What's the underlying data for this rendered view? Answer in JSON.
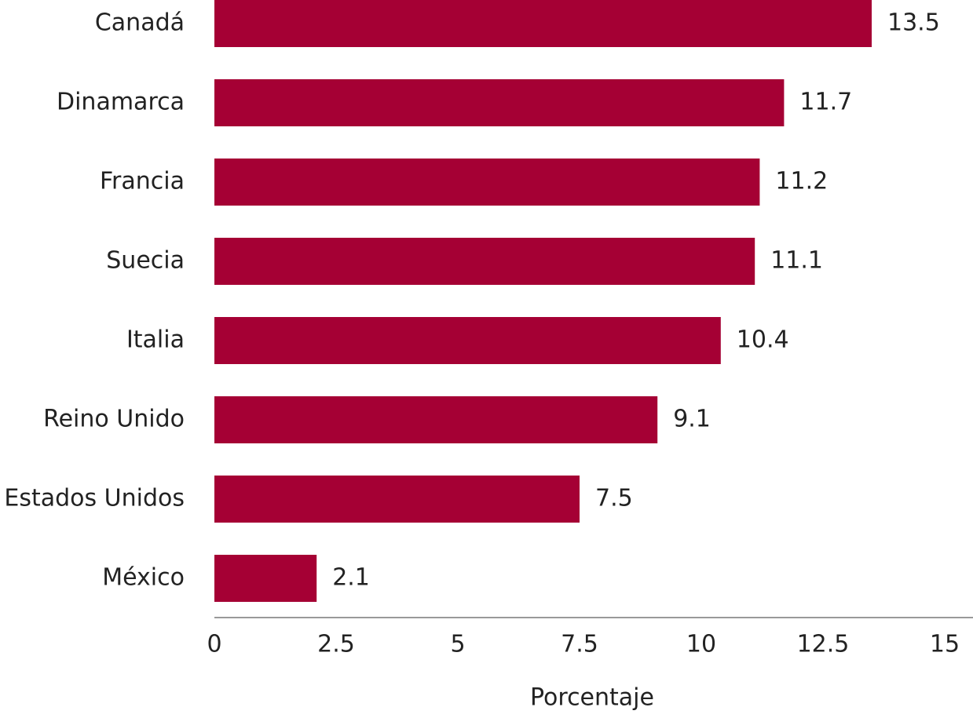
{
  "chart_data": {
    "type": "bar",
    "orientation": "horizontal",
    "categories": [
      "Canadá",
      "Dinamarca",
      "Francia",
      "Suecia",
      "Italia",
      "Reino Unido",
      "Estados Unidos",
      "México"
    ],
    "values": [
      13.5,
      11.7,
      11.2,
      11.1,
      10.4,
      9.1,
      7.5,
      2.1
    ],
    "color": "#a50034",
    "xlabel": "Porcentaje",
    "xlim": [
      0,
      15
    ],
    "xticks": [
      0,
      2.5,
      5,
      7.5,
      10,
      12.5,
      15
    ],
    "grid": false
  }
}
